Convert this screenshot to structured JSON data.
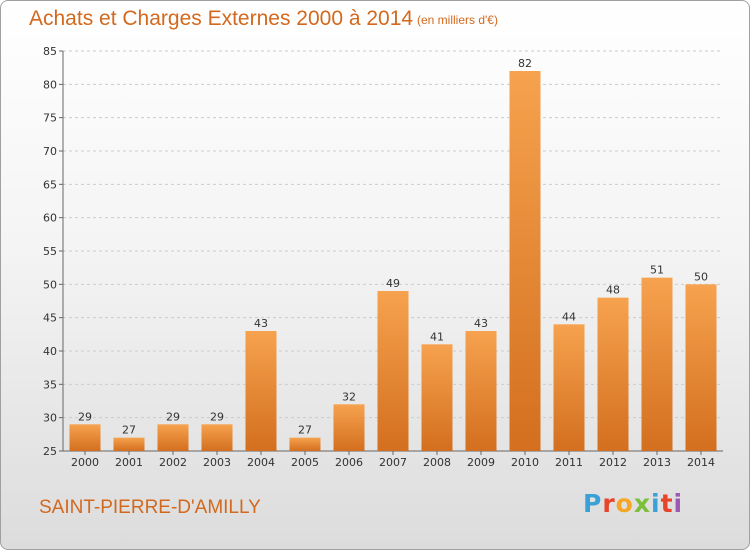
{
  "header": {
    "title": "Achats et Charges Externes 2000 à 2014",
    "subtitle": "(en milliers d'€)"
  },
  "footer": {
    "location": "SAINT-PIERRE-D'AMILLY",
    "logo_letters": [
      "P",
      "r",
      "o",
      "x",
      "i",
      "t",
      "i"
    ]
  },
  "colors": {
    "bar_light": "#f6a24e",
    "bar_dark": "#d36f1f",
    "title": "#d2691e",
    "grid": "#cccccc"
  },
  "chart_data": {
    "type": "bar",
    "title": "Achats et Charges Externes 2000 à 2014",
    "subtitle": "(en milliers d'€)",
    "categories": [
      "2000",
      "2001",
      "2002",
      "2003",
      "2004",
      "2005",
      "2006",
      "2007",
      "2008",
      "2009",
      "2010",
      "2011",
      "2012",
      "2013",
      "2014"
    ],
    "values": [
      29,
      27,
      29,
      29,
      43,
      27,
      32,
      49,
      41,
      43,
      82,
      44,
      48,
      51,
      50
    ],
    "ylim": [
      25,
      85
    ],
    "yticks": [
      25,
      30,
      35,
      40,
      45,
      50,
      55,
      60,
      65,
      70,
      75,
      80,
      85
    ],
    "grid": "horizontal dashed",
    "legend": "none"
  }
}
